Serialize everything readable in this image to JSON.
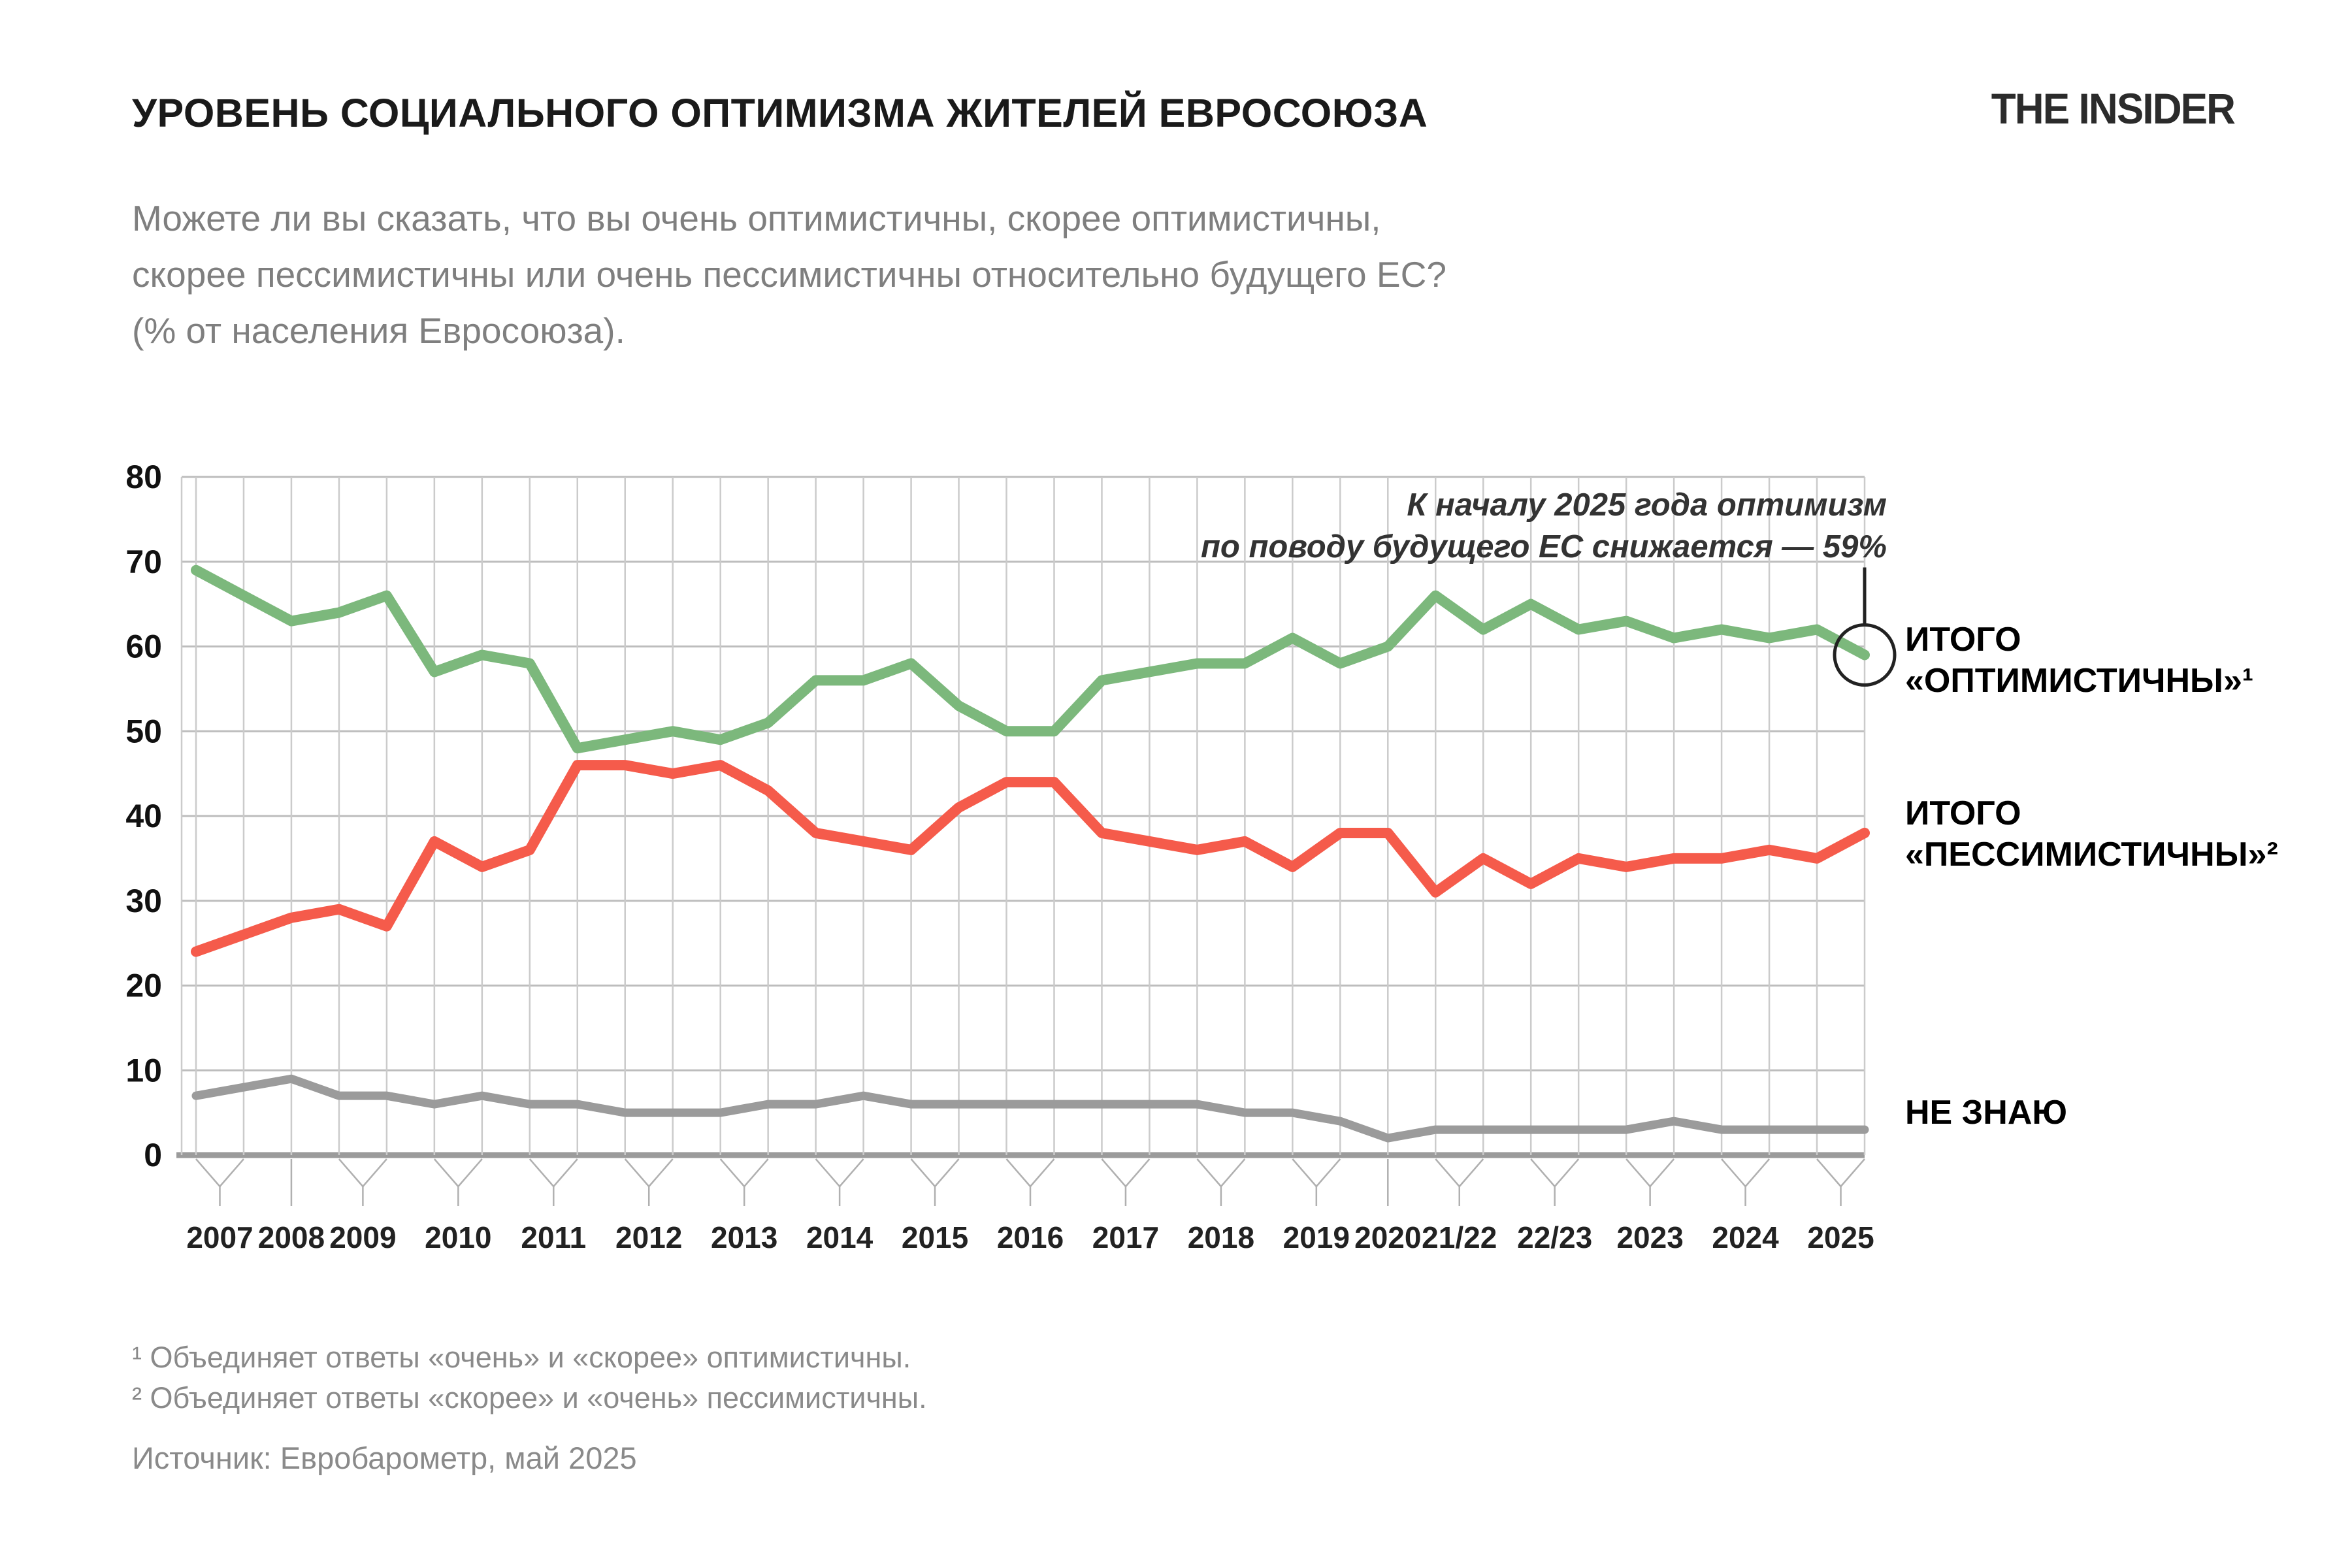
{
  "header": {
    "title": "УРОВЕНЬ СОЦИАЛЬНОГО ОПТИМИЗМА ЖИТЕЛЕЙ ЕВРОСОЮЗА",
    "logo": "THE INSIDER"
  },
  "subtitle": {
    "lines": [
      "Можете ли вы сказать, что вы очень оптимистичны, скорее оптимистичны,",
      "скорее пессимистичны или очень пессимистичны относительно будущего ЕС?",
      "(% от населения Евросоюза)."
    ]
  },
  "annotation": {
    "lines": [
      "К началу 2025 года оптимизм",
      "по поводу будущего ЕС снижается — 59%"
    ]
  },
  "legend": {
    "optimistic": [
      "ИТОГО",
      "«ОПТИМИСТИЧНЫ»¹"
    ],
    "pessimistic": [
      "ИТОГО",
      "«ПЕССИМИСТИЧНЫ»²"
    ],
    "dont_know": "НЕ ЗНАЮ"
  },
  "footnotes": {
    "note1": "¹ Объединяет ответы «очень» и «скорее» оптимистичны.",
    "note2": "² Объединяет ответы «скорее» и «очень» пессимистичны.",
    "source": "Источник: Евробарометр, май 2025"
  },
  "colors": {
    "optimistic": "#7cb87c",
    "pessimistic": "#f55b4b",
    "dont_know": "#9b9b9b",
    "grid_h": "#bdbdbd",
    "grid_v": "#cbcbcb",
    "axis": "#9b9b9b",
    "fork": "#b0b0b0",
    "highlight": "#222222"
  },
  "chart_data": {
    "type": "line",
    "title": "УРОВЕНЬ СОЦИАЛЬНОГО ОПТИМИЗМА ЖИТЕЛЕЙ ЕВРОСОЮЗА",
    "ylabel": "% от населения Евросоюза",
    "ylim": [
      0,
      80
    ],
    "grid": true,
    "legend_position": "right",
    "y_ticks": [
      0,
      10,
      20,
      30,
      40,
      50,
      60,
      70,
      80
    ],
    "x_groups": [
      {
        "label": "2007",
        "waves": 2
      },
      {
        "label": "2008",
        "waves": 1
      },
      {
        "label": "2009",
        "waves": 2
      },
      {
        "label": "2010",
        "waves": 2
      },
      {
        "label": "2011",
        "waves": 2
      },
      {
        "label": "2012",
        "waves": 2
      },
      {
        "label": "2013",
        "waves": 2
      },
      {
        "label": "2014",
        "waves": 2
      },
      {
        "label": "2015",
        "waves": 2
      },
      {
        "label": "2016",
        "waves": 2
      },
      {
        "label": "2017",
        "waves": 2
      },
      {
        "label": "2018",
        "waves": 2
      },
      {
        "label": "2019",
        "waves": 2
      },
      {
        "label": "2020",
        "waves": 1
      },
      {
        "label": "21/22",
        "waves": 2
      },
      {
        "label": "22/23",
        "waves": 2
      },
      {
        "label": "2023",
        "waves": 2
      },
      {
        "label": "2024",
        "waves": 2
      },
      {
        "label": "2025",
        "waves": 2
      }
    ],
    "series": [
      {
        "name": "ИТОГО «ОПТИМИСТИЧНЫ»",
        "color_key": "optimistic",
        "values": [
          69,
          66,
          63,
          64,
          66,
          57,
          59,
          58,
          48,
          49,
          50,
          49,
          51,
          56,
          56,
          58,
          53,
          50,
          50,
          56,
          57,
          58,
          58,
          61,
          58,
          60,
          66,
          62,
          65,
          62,
          63,
          61,
          62,
          61,
          62,
          59
        ]
      },
      {
        "name": "ИТОГО «ПЕССИМИСТИЧНЫ»",
        "color_key": "pessimistic",
        "values": [
          24,
          26,
          28,
          29,
          27,
          37,
          34,
          36,
          46,
          46,
          45,
          46,
          43,
          38,
          37,
          36,
          41,
          44,
          44,
          38,
          37,
          36,
          37,
          34,
          38,
          38,
          31,
          35,
          32,
          35,
          34,
          35,
          35,
          36,
          35,
          38
        ]
      },
      {
        "name": "НЕ ЗНАЮ",
        "color_key": "dont_know",
        "values": [
          7,
          8,
          9,
          7,
          7,
          6,
          7,
          6,
          6,
          5,
          5,
          5,
          6,
          6,
          7,
          6,
          6,
          6,
          6,
          6,
          6,
          6,
          5,
          5,
          4,
          2,
          3,
          3,
          3,
          3,
          3,
          4,
          3,
          3,
          3,
          3
        ]
      }
    ],
    "highlight": {
      "series": 0,
      "point_index": 35,
      "value": 59,
      "value_label": "59%"
    }
  }
}
